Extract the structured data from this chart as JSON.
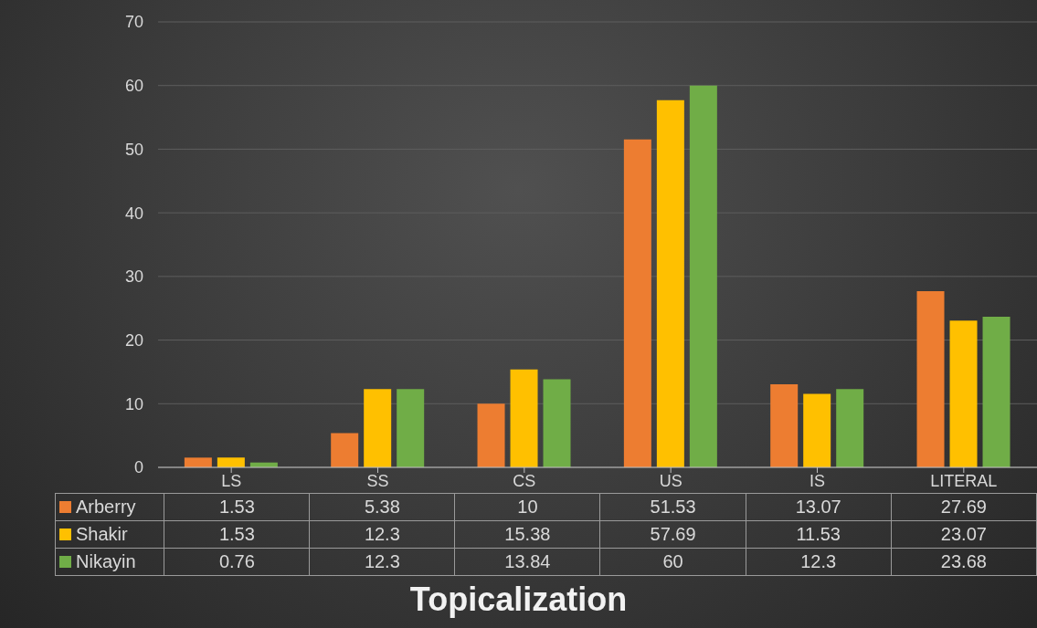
{
  "chart_data": {
    "type": "bar",
    "title": "Topicalization",
    "categories": [
      "LS",
      "SS",
      "CS",
      "US",
      "IS",
      "LITERAL"
    ],
    "series": [
      {
        "name": "Arberry",
        "color": "#ed7d31",
        "values": [
          1.53,
          5.38,
          10,
          51.53,
          13.07,
          27.69
        ]
      },
      {
        "name": "Shakir",
        "color": "#ffc000",
        "values": [
          1.53,
          12.3,
          15.38,
          57.69,
          11.53,
          23.07
        ]
      },
      {
        "name": "Nikayin",
        "color": "#70ad47",
        "values": [
          0.76,
          12.3,
          13.84,
          60,
          12.3,
          23.68
        ]
      }
    ],
    "ylim": [
      0,
      70
    ],
    "yticks": [
      0,
      10,
      20,
      30,
      40,
      50,
      60,
      70
    ],
    "grid": "y",
    "legend": "bottom",
    "data_labels": true
  }
}
